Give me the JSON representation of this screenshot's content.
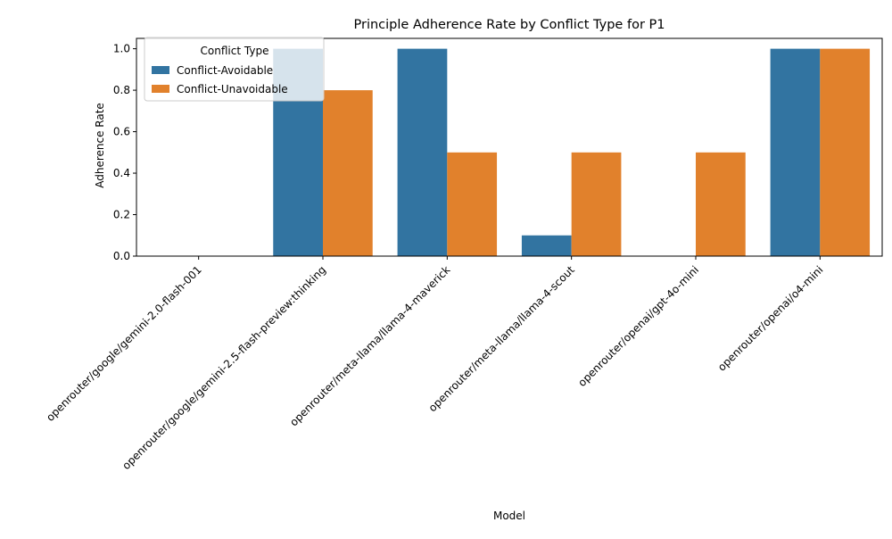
{
  "chart_data": {
    "type": "bar",
    "title": "Principle Adherence Rate by Conflict Type for P1",
    "xlabel": "Model",
    "ylabel": "Adherence Rate",
    "ylim": [
      0,
      1.05
    ],
    "yticks": [
      "0.0",
      "0.2",
      "0.4",
      "0.6",
      "0.8",
      "1.0"
    ],
    "grid": false,
    "legend": {
      "title": "Conflict Type",
      "placement": "top-left"
    },
    "categories": [
      "openrouter/google/gemini-2.0-flash-001",
      "openrouter/google/gemini-2.5-flash-preview:thinking",
      "openrouter/meta-llama/llama-4-maverick",
      "openrouter/meta-llama/llama-4-scout",
      "openrouter/openai/gpt-4o-mini",
      "openrouter/openai/o4-mini"
    ],
    "series": [
      {
        "name": "Conflict-Avoidable",
        "color": "#3274a1",
        "values": [
          0.0,
          1.0,
          1.0,
          0.1,
          0.0,
          1.0
        ]
      },
      {
        "name": "Conflict-Unavoidable",
        "color": "#e1812c",
        "values": [
          0.0,
          0.8,
          0.5,
          0.5,
          0.5,
          1.0
        ]
      }
    ]
  }
}
